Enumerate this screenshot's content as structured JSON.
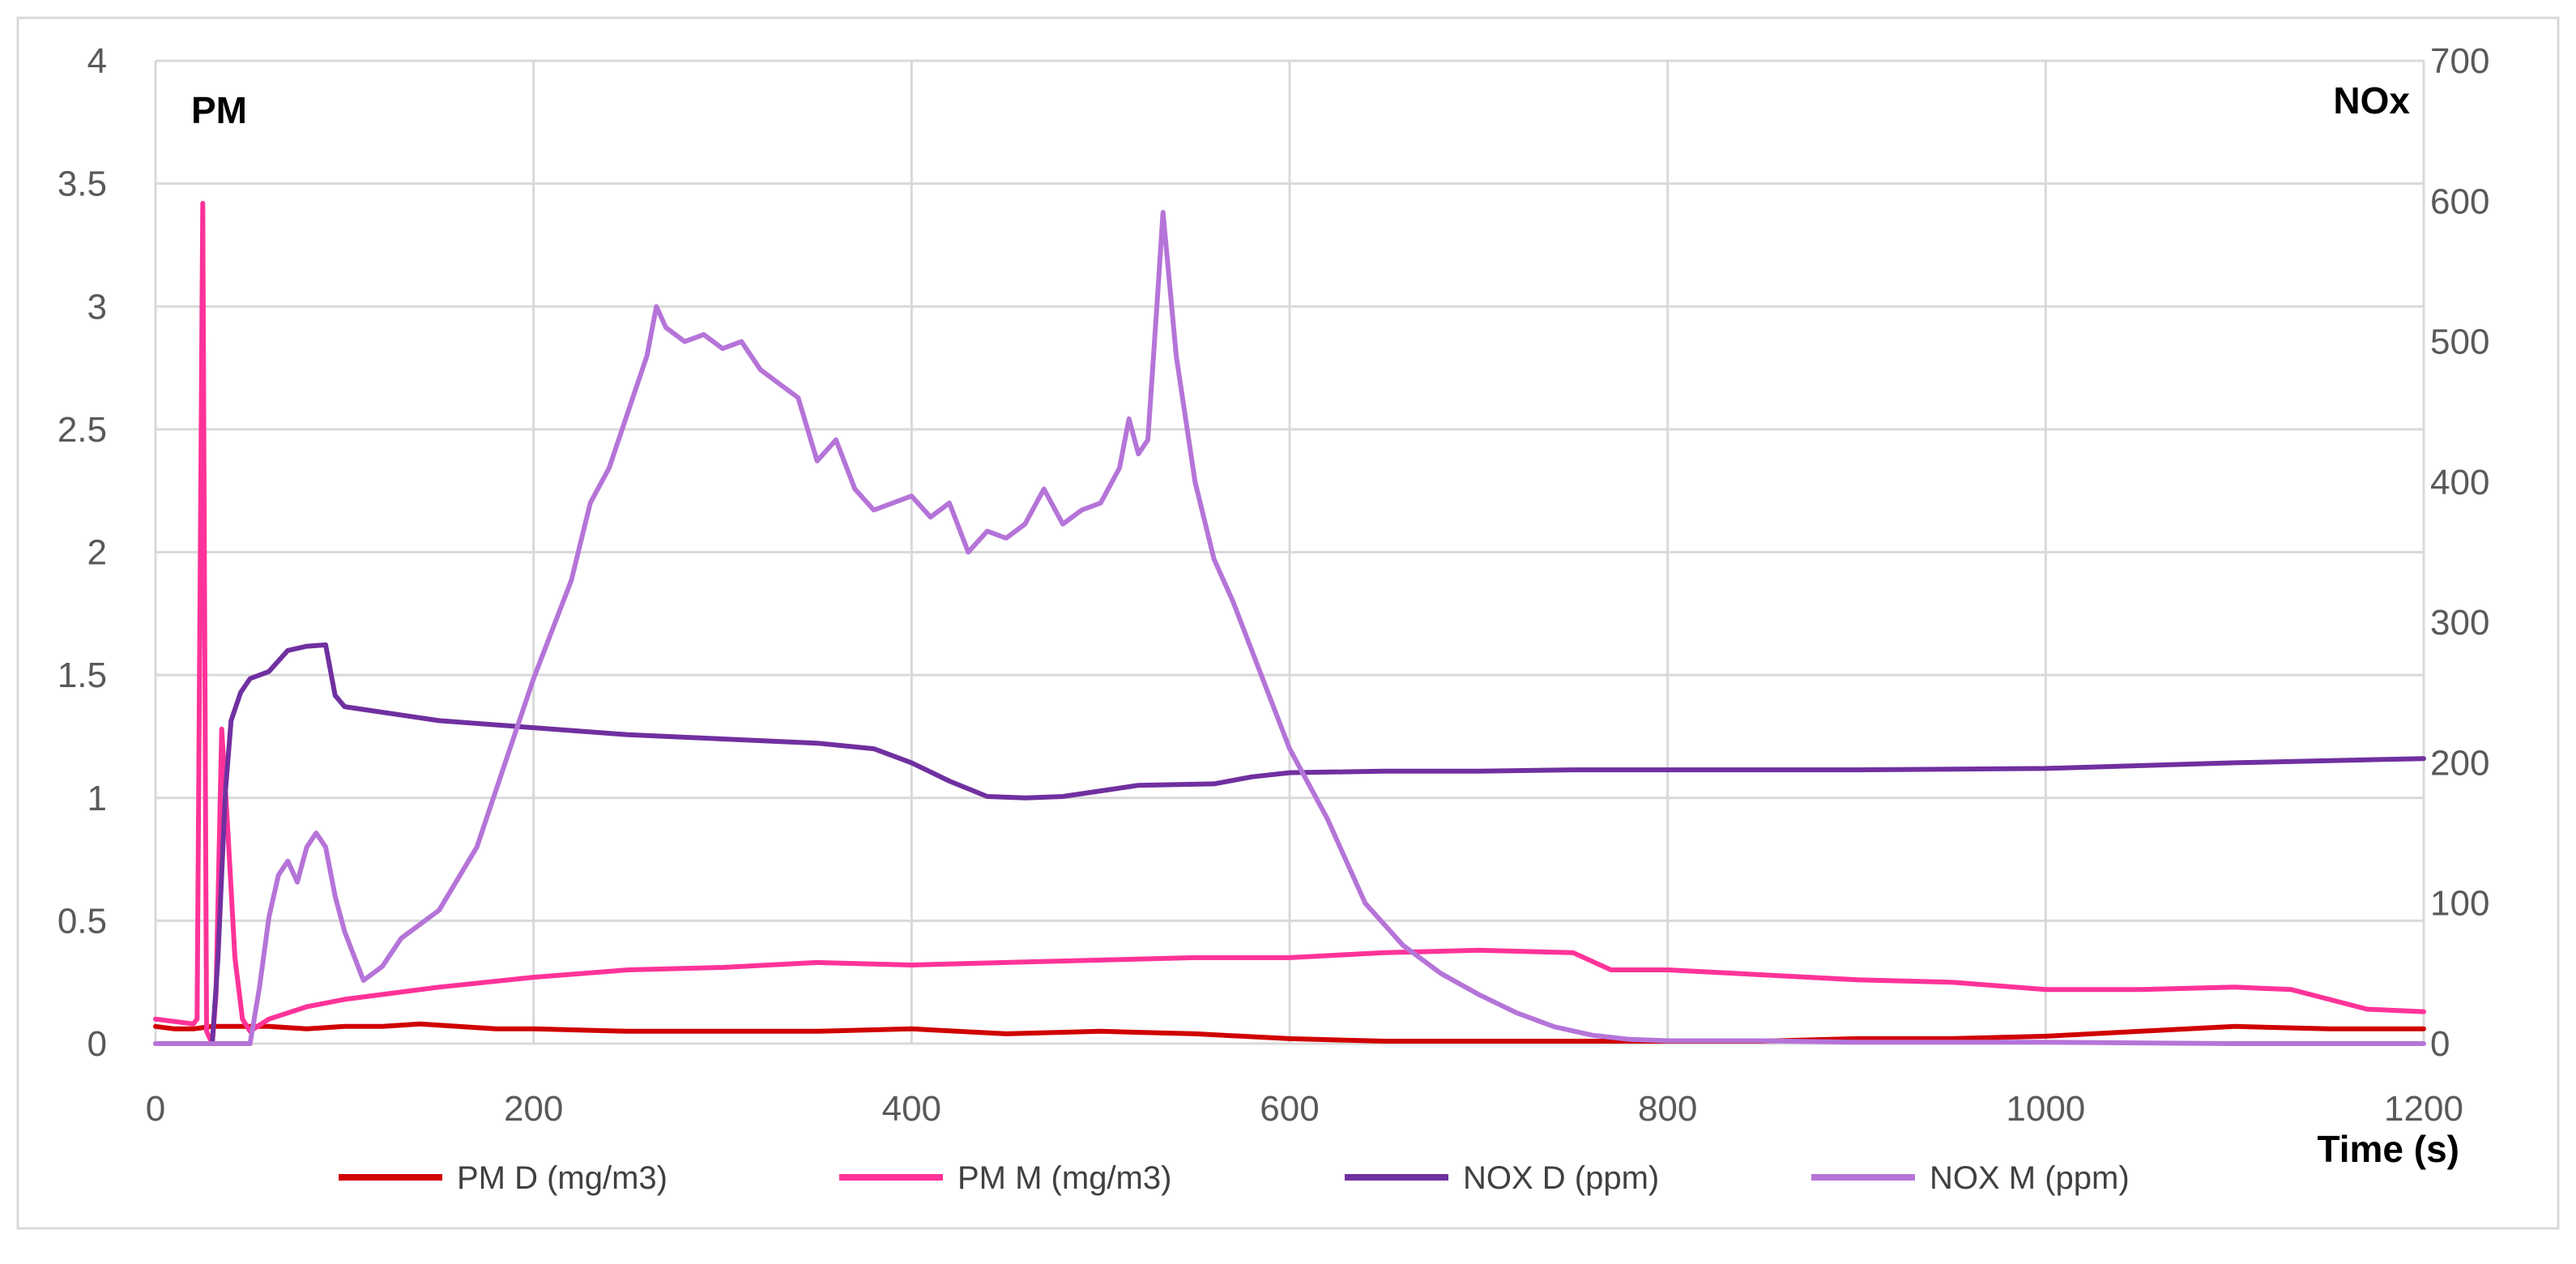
{
  "chart_data": {
    "type": "line",
    "left_axis_label": "PM",
    "right_axis_label": "NOx",
    "xlabel": "Time (s)",
    "xlim": [
      0,
      1200
    ],
    "x_ticks": [
      "0",
      "200",
      "400",
      "600",
      "800",
      "1000",
      "1200"
    ],
    "y_left_lim": [
      0,
      4
    ],
    "y_left_ticks": [
      "0",
      "0.5",
      "1",
      "1.5",
      "2",
      "2.5",
      "3",
      "3.5",
      "4"
    ],
    "y_right_lim": [
      0,
      700
    ],
    "y_right_ticks": [
      "0",
      "100",
      "200",
      "300",
      "400",
      "500",
      "600",
      "700"
    ],
    "grid": true,
    "legend_position": "bottom",
    "series": [
      {
        "name": "PM D (mg/m3)",
        "axis": "left",
        "color": "#D00000",
        "x": [
          0,
          10,
          20,
          30,
          40,
          60,
          80,
          100,
          120,
          140,
          160,
          180,
          200,
          250,
          300,
          350,
          400,
          450,
          500,
          550,
          600,
          650,
          700,
          750,
          800,
          850,
          900,
          950,
          1000,
          1050,
          1100,
          1150,
          1200
        ],
        "y": [
          0.07,
          0.06,
          0.06,
          0.07,
          0.07,
          0.07,
          0.06,
          0.07,
          0.07,
          0.08,
          0.07,
          0.06,
          0.06,
          0.05,
          0.05,
          0.05,
          0.06,
          0.04,
          0.05,
          0.04,
          0.02,
          0.01,
          0.01,
          0.01,
          0.01,
          0.01,
          0.02,
          0.02,
          0.03,
          0.05,
          0.07,
          0.06,
          0.06
        ]
      },
      {
        "name": "PM M (mg/m3)",
        "axis": "left",
        "color": "#FF3399",
        "x": [
          0,
          10,
          20,
          22,
          25,
          27,
          30,
          32,
          35,
          38,
          42,
          46,
          50,
          60,
          80,
          100,
          150,
          200,
          250,
          300,
          350,
          400,
          450,
          500,
          550,
          600,
          650,
          700,
          750,
          770,
          780,
          800,
          850,
          900,
          950,
          1000,
          1050,
          1100,
          1130,
          1150,
          1170,
          1200
        ],
        "y": [
          0.1,
          0.09,
          0.08,
          0.1,
          3.42,
          0.05,
          0.0,
          0.2,
          1.28,
          0.9,
          0.35,
          0.1,
          0.05,
          0.1,
          0.15,
          0.18,
          0.23,
          0.27,
          0.3,
          0.31,
          0.33,
          0.32,
          0.33,
          0.34,
          0.35,
          0.35,
          0.37,
          0.38,
          0.37,
          0.3,
          0.3,
          0.3,
          0.28,
          0.26,
          0.25,
          0.22,
          0.22,
          0.23,
          0.22,
          0.18,
          0.14,
          0.13
        ]
      },
      {
        "name": "NOX D (ppm)",
        "axis": "right",
        "color": "#7030A0",
        "x": [
          0,
          25,
          30,
          33,
          37,
          40,
          45,
          50,
          60,
          70,
          80,
          90,
          95,
          100,
          110,
          150,
          200,
          250,
          300,
          350,
          380,
          400,
          420,
          440,
          460,
          480,
          500,
          520,
          560,
          580,
          600,
          650,
          700,
          750,
          800,
          900,
          1000,
          1100,
          1200
        ],
        "y": [
          0,
          0,
          0,
          60,
          180,
          230,
          250,
          260,
          265,
          280,
          283,
          284,
          248,
          240,
          238,
          230,
          225,
          220,
          217,
          214,
          210,
          200,
          187,
          176,
          175,
          176,
          180,
          184,
          185,
          190,
          193,
          194,
          194,
          195,
          195,
          195,
          196,
          200,
          203
        ]
      },
      {
        "name": "NOX M (ppm)",
        "axis": "right",
        "color": "#B574D8",
        "x": [
          0,
          20,
          40,
          50,
          55,
          60,
          65,
          70,
          75,
          80,
          85,
          90,
          95,
          100,
          110,
          120,
          130,
          150,
          170,
          190,
          200,
          210,
          220,
          230,
          240,
          250,
          260,
          265,
          270,
          280,
          290,
          300,
          310,
          320,
          330,
          340,
          350,
          360,
          370,
          380,
          390,
          400,
          410,
          420,
          430,
          440,
          450,
          460,
          470,
          480,
          490,
          500,
          510,
          515,
          520,
          525,
          530,
          533,
          540,
          550,
          560,
          570,
          580,
          600,
          620,
          640,
          660,
          680,
          700,
          720,
          740,
          760,
          780,
          800,
          850,
          900,
          1000,
          1100,
          1200
        ],
        "y": [
          0,
          0,
          0,
          0,
          40,
          90,
          120,
          130,
          115,
          140,
          150,
          140,
          105,
          80,
          45,
          55,
          75,
          95,
          140,
          220,
          260,
          295,
          330,
          385,
          410,
          450,
          490,
          525,
          510,
          500,
          505,
          495,
          500,
          480,
          470,
          460,
          415,
          430,
          395,
          380,
          385,
          390,
          375,
          385,
          350,
          365,
          360,
          370,
          395,
          370,
          380,
          385,
          410,
          445,
          420,
          430,
          530,
          592,
          490,
          400,
          345,
          315,
          280,
          210,
          160,
          100,
          70,
          50,
          35,
          22,
          12,
          6,
          3,
          2,
          2,
          1,
          1,
          0,
          0
        ]
      }
    ]
  }
}
